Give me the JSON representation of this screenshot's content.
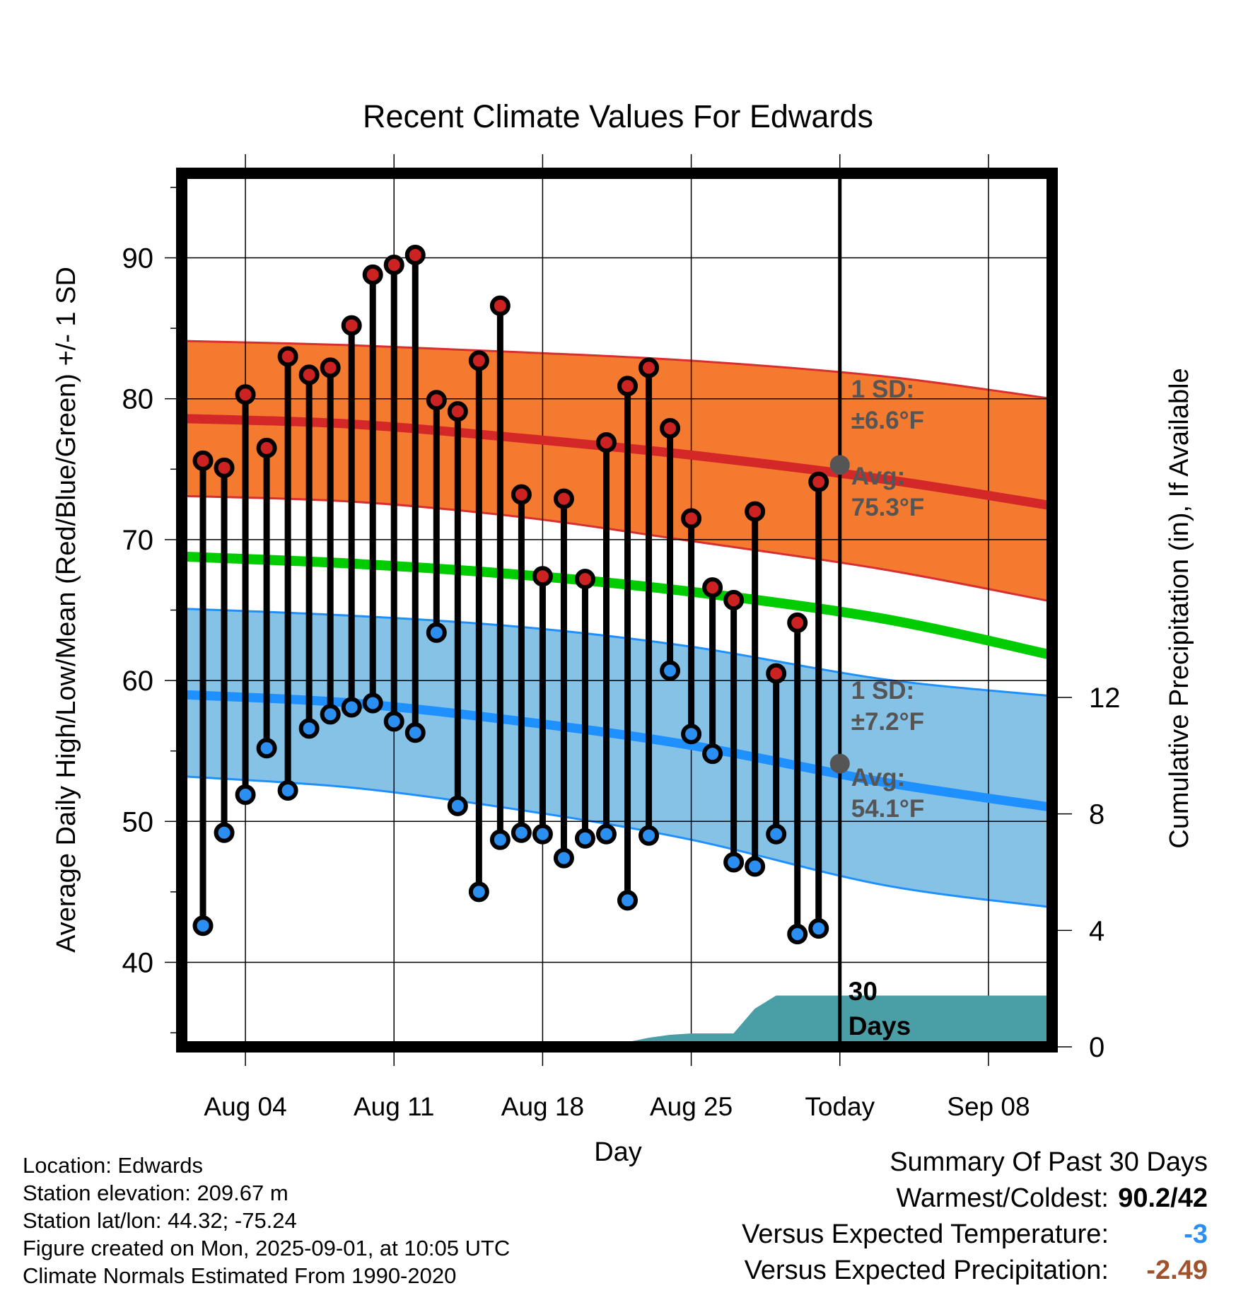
{
  "chart_data": {
    "type": "line",
    "title": "Recent Climate Values For Edwards",
    "xlabel": "Day",
    "ylabel": "Average Daily High/Low/Mean (Red/Blue/Green) +/- 1 SD",
    "y2label": "Cumulative Precipitation (in), If Available",
    "ylim": [
      34,
      96
    ],
    "y2lim": [
      0,
      30
    ],
    "yticks": [
      40,
      50,
      60,
      70,
      80,
      90
    ],
    "y2ticks": [
      0,
      4,
      8,
      12
    ],
    "x_tick_labels": [
      "Aug 04",
      "Aug 11",
      "Aug 18",
      "Aug 25",
      "Today",
      "Sep 08"
    ],
    "x_start_date": "2025-08-01",
    "x_end_date": "2025-09-11",
    "today_date": "2025-09-01",
    "today_line_label": [
      "30",
      "Days"
    ],
    "grid": true,
    "observed_dates": [
      "2025-08-02",
      "2025-08-03",
      "2025-08-04",
      "2025-08-05",
      "2025-08-06",
      "2025-08-07",
      "2025-08-08",
      "2025-08-09",
      "2025-08-10",
      "2025-08-11",
      "2025-08-12",
      "2025-08-13",
      "2025-08-14",
      "2025-08-15",
      "2025-08-16",
      "2025-08-17",
      "2025-08-18",
      "2025-08-19",
      "2025-08-20",
      "2025-08-21",
      "2025-08-22",
      "2025-08-23",
      "2025-08-24",
      "2025-08-25",
      "2025-08-26",
      "2025-08-27",
      "2025-08-28",
      "2025-08-29",
      "2025-08-30",
      "2025-08-31"
    ],
    "series": [
      {
        "name": "Daily High",
        "color": "#cc2222",
        "values": [
          75.6,
          75.1,
          80.3,
          76.5,
          83.0,
          81.7,
          82.2,
          85.2,
          88.8,
          89.5,
          90.2,
          79.9,
          79.1,
          82.7,
          86.6,
          73.2,
          67.4,
          72.9,
          67.2,
          76.9,
          80.9,
          82.2,
          77.9,
          71.5,
          66.6,
          65.7,
          72.0,
          60.5,
          64.1,
          74.1
        ]
      },
      {
        "name": "Daily Low",
        "color": "#2a8ff0",
        "values": [
          42.6,
          49.2,
          51.9,
          55.2,
          52.2,
          56.6,
          57.6,
          58.1,
          58.4,
          57.1,
          56.3,
          63.4,
          51.1,
          45.0,
          48.7,
          49.2,
          49.1,
          47.4,
          48.8,
          49.1,
          44.4,
          49.0,
          60.7,
          56.2,
          54.8,
          47.1,
          46.8,
          49.1,
          42.0,
          42.4
        ]
      }
    ],
    "normals": {
      "high_avg": [
        78.6,
        78.2,
        77.2,
        76.0,
        74.3,
        72.4
      ],
      "high_sd_upper": [
        84.1,
        83.8,
        83.3,
        82.7,
        81.6,
        80.0
      ],
      "high_sd_lower": [
        73.1,
        72.7,
        71.6,
        69.9,
        67.9,
        65.6
      ],
      "mean_avg": [
        68.8,
        68.3,
        67.5,
        66.3,
        64.4,
        61.8
      ],
      "low_avg": [
        59.0,
        58.4,
        57.1,
        55.4,
        52.8,
        51.0
      ],
      "low_sd_upper": [
        65.1,
        64.6,
        63.8,
        62.4,
        60.1,
        58.9
      ],
      "low_sd_lower": [
        53.2,
        52.4,
        50.8,
        48.7,
        45.5,
        43.9
      ],
      "normal_dates": [
        "2025-08-01",
        "2025-08-09",
        "2025-08-17",
        "2025-08-25",
        "2025-09-03",
        "2025-09-11"
      ],
      "colors": {
        "high_band": "#f47a30",
        "high_line": "#d42828",
        "mean_line": "#00cc00",
        "low_band": "#86c1e6",
        "low_line": "#1e90ff"
      }
    },
    "precipitation": {
      "color": "#4a9ea6",
      "dates": [
        "2025-08-18",
        "2025-08-20",
        "2025-08-22",
        "2025-08-23",
        "2025-08-24",
        "2025-08-25",
        "2025-08-27",
        "2025-08-28",
        "2025-08-29",
        "2025-09-11"
      ],
      "values": [
        0.0,
        0.15,
        0.15,
        0.3,
        0.4,
        0.45,
        0.45,
        1.3,
        1.75,
        1.75
      ]
    },
    "annotations": {
      "high_sd": [
        "1 SD:",
        "±6.6°F"
      ],
      "high_avg": [
        "Avg:",
        "75.3°F"
      ],
      "low_sd": [
        "1 SD:",
        "±7.2°F"
      ],
      "low_avg": [
        "Avg:",
        "54.1°F"
      ],
      "high_today": 75.3,
      "low_today": 54.1
    }
  },
  "footer": {
    "location": "Location: Edwards",
    "elevation": "Station elevation: 209.67 m",
    "latlon": "Station lat/lon: 44.32; -75.24",
    "created": "Figure created on Mon, 2025-09-01, at 10:05 UTC",
    "normals": "Climate Normals Estimated From 1990-2020"
  },
  "summary": {
    "title": "Summary Of Past 30 Days",
    "warmest_label": "Warmest/Coldest:",
    "warmest_value": "90.2/42",
    "temp_label": "Versus Expected Temperature:",
    "temp_value": "-3",
    "temp_color": "#2a8ff0",
    "precip_label": "Versus Expected Precipitation:",
    "precip_value": "-2.49",
    "precip_color": "#a0522d"
  }
}
